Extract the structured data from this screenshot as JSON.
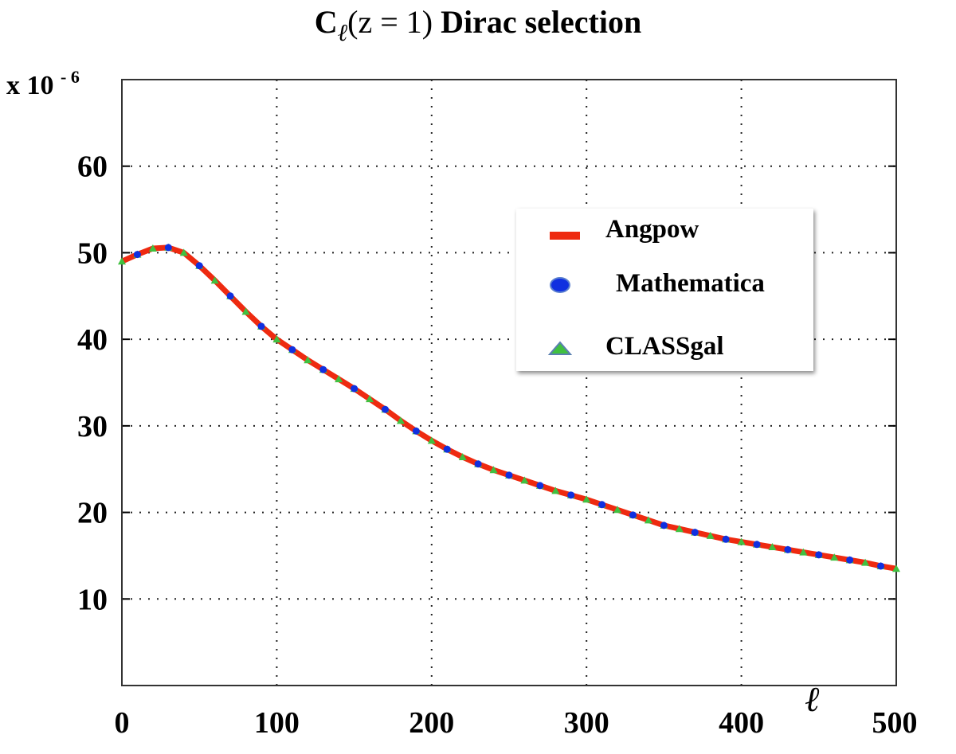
{
  "chart_data": {
    "type": "line",
    "title": {
      "prefix": "C",
      "subscript": "ℓ",
      "args": "(z = 1)",
      "suffix": "Dirac selection"
    },
    "y_scale_label": {
      "base": "x 10",
      "exponent": "- 6"
    },
    "xlabel": "ℓ",
    "ylabel": "",
    "xlim": [
      0,
      500
    ],
    "ylim": [
      0,
      70
    ],
    "x_ticks": [
      "0",
      "100",
      "200",
      "300",
      "400",
      "500"
    ],
    "y_ticks": [
      "10",
      "20",
      "30",
      "40",
      "50",
      "60"
    ],
    "grid": true,
    "legend_position": "upper-right",
    "x": [
      0,
      10,
      20,
      30,
      40,
      50,
      60,
      70,
      80,
      90,
      100,
      110,
      120,
      130,
      140,
      150,
      160,
      170,
      180,
      190,
      200,
      210,
      220,
      230,
      240,
      250,
      260,
      270,
      280,
      290,
      300,
      310,
      320,
      330,
      340,
      350,
      360,
      370,
      380,
      390,
      400,
      410,
      420,
      430,
      440,
      450,
      460,
      470,
      480,
      490,
      500
    ],
    "series": [
      {
        "name": "Angpow",
        "style": "line",
        "color": "#ee2a10",
        "values": [
          49.0,
          49.8,
          50.5,
          50.6,
          50.0,
          48.5,
          46.8,
          45.0,
          43.2,
          41.5,
          40.0,
          38.8,
          37.6,
          36.5,
          35.4,
          34.3,
          33.1,
          31.9,
          30.6,
          29.4,
          28.3,
          27.3,
          26.4,
          25.6,
          24.9,
          24.3,
          23.7,
          23.1,
          22.5,
          22.0,
          21.5,
          20.9,
          20.3,
          19.7,
          19.1,
          18.5,
          18.1,
          17.7,
          17.3,
          16.9,
          16.6,
          16.3,
          16.0,
          15.7,
          15.4,
          15.1,
          14.8,
          14.5,
          14.2,
          13.8,
          13.5
        ]
      },
      {
        "name": "Mathematica",
        "style": "circle",
        "color": "#1030e0",
        "values": [
          49.0,
          49.8,
          50.5,
          50.6,
          50.0,
          48.5,
          46.8,
          45.0,
          43.2,
          41.5,
          40.0,
          38.8,
          37.6,
          36.5,
          35.4,
          34.3,
          33.1,
          31.9,
          30.6,
          29.4,
          28.3,
          27.3,
          26.4,
          25.6,
          24.9,
          24.3,
          23.7,
          23.1,
          22.5,
          22.0,
          21.5,
          20.9,
          20.3,
          19.7,
          19.1,
          18.5,
          18.1,
          17.7,
          17.3,
          16.9,
          16.6,
          16.3,
          16.0,
          15.7,
          15.4,
          15.1,
          14.8,
          14.5,
          14.2,
          13.8,
          13.5
        ]
      },
      {
        "name": "CLASSgal",
        "style": "triangle",
        "color": "#40c040",
        "values": [
          49.0,
          49.8,
          50.5,
          50.6,
          50.0,
          48.5,
          46.8,
          45.0,
          43.2,
          41.5,
          40.0,
          38.8,
          37.6,
          36.5,
          35.4,
          34.3,
          33.1,
          31.9,
          30.6,
          29.4,
          28.3,
          27.3,
          26.4,
          25.6,
          24.9,
          24.3,
          23.7,
          23.1,
          22.5,
          22.0,
          21.5,
          20.9,
          20.3,
          19.7,
          19.1,
          18.5,
          18.1,
          17.7,
          17.3,
          16.9,
          16.6,
          16.3,
          16.0,
          15.7,
          15.4,
          15.1,
          14.8,
          14.5,
          14.2,
          13.8,
          13.5
        ]
      }
    ]
  }
}
